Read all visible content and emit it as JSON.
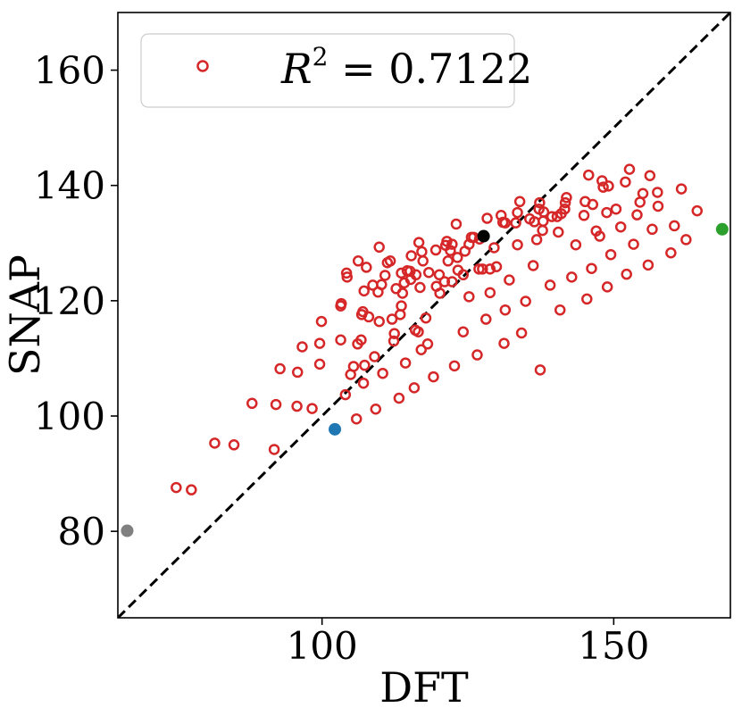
{
  "chart_data": {
    "type": "scatter",
    "title": "",
    "xlabel": "DFT",
    "ylabel": "SNAP",
    "xlim": [
      65,
      170
    ],
    "ylim": [
      65,
      170
    ],
    "xticks": [
      100,
      150
    ],
    "yticks": [
      80,
      100,
      120,
      140,
      160
    ],
    "reference_line": {
      "label": "y = x",
      "style": "dashed",
      "color": "#000000"
    },
    "legend": {
      "position": "top-left",
      "label_prefix": "R",
      "label_power": "2",
      "label_rest": " = 0.7122",
      "r_squared": 0.7122
    },
    "marker_color": "#d62728",
    "series": [
      {
        "name": "R^2 = 0.7122",
        "marker": "open-circle",
        "color": "#d62728",
        "points": [
          [
            75.0,
            87.6
          ],
          [
            77.6,
            87.2
          ],
          [
            81.6,
            95.3
          ],
          [
            84.9,
            95.0
          ],
          [
            88.0,
            102.2
          ],
          [
            91.8,
            94.2
          ],
          [
            92.1,
            102.0
          ],
          [
            92.8,
            108.2
          ],
          [
            95.7,
            101.7
          ],
          [
            95.8,
            107.6
          ],
          [
            96.6,
            112.0
          ],
          [
            98.3,
            101.3
          ],
          [
            99.6,
            109.0
          ],
          [
            99.6,
            112.6
          ],
          [
            99.9,
            116.4
          ],
          [
            103.2,
            113.2
          ],
          [
            103.2,
            119.1
          ],
          [
            103.3,
            119.5
          ],
          [
            104.0,
            103.7
          ],
          [
            104.2,
            124.8
          ],
          [
            104.3,
            124.1
          ],
          [
            104.9,
            107.2
          ],
          [
            105.4,
            108.6
          ],
          [
            105.9,
            99.5
          ],
          [
            106.1,
            112.5
          ],
          [
            106.2,
            126.9
          ],
          [
            106.7,
            113.2
          ],
          [
            106.8,
            117.6
          ],
          [
            107.0,
            118.1
          ],
          [
            107.1,
            105.7
          ],
          [
            107.2,
            121.7
          ],
          [
            107.3,
            108.8
          ],
          [
            107.6,
            125.8
          ],
          [
            108.0,
            117.2
          ],
          [
            108.7,
            122.7
          ],
          [
            109.0,
            110.3
          ],
          [
            109.2,
            101.2
          ],
          [
            109.6,
            121.5
          ],
          [
            109.8,
            116.4
          ],
          [
            109.8,
            129.3
          ],
          [
            110.2,
            122.8
          ],
          [
            110.4,
            107.4
          ],
          [
            110.8,
            124.4
          ],
          [
            111.2,
            126.6
          ],
          [
            111.7,
            126.9
          ],
          [
            112.0,
            116.8
          ],
          [
            112.3,
            113.0
          ],
          [
            112.4,
            114.3
          ],
          [
            112.7,
            122.1
          ],
          [
            113.2,
            103.1
          ],
          [
            113.4,
            117.6
          ],
          [
            113.6,
            119.1
          ],
          [
            113.6,
            124.8
          ],
          [
            113.8,
            121.3
          ],
          [
            114.1,
            123.1
          ],
          [
            114.3,
            109.2
          ],
          [
            114.6,
            125.2
          ],
          [
            115.1,
            125.1
          ],
          [
            115.2,
            123.7
          ],
          [
            115.3,
            127.8
          ],
          [
            115.8,
            104.9
          ],
          [
            116.0,
            114.9
          ],
          [
            116.1,
            124.5
          ],
          [
            116.5,
            114.6
          ],
          [
            116.6,
            130.1
          ],
          [
            116.8,
            122.3
          ],
          [
            117.0,
            111.5
          ],
          [
            117.1,
            128.5
          ],
          [
            117.3,
            126.9
          ],
          [
            117.8,
            117.0
          ],
          [
            118.1,
            112.5
          ],
          [
            118.3,
            124.9
          ],
          [
            119.1,
            106.8
          ],
          [
            119.5,
            128.8
          ],
          [
            119.6,
            122.5
          ],
          [
            120.1,
            124.5
          ],
          [
            120.2,
            121.3
          ],
          [
            121.0,
            123.3
          ],
          [
            121.2,
            129.6
          ],
          [
            121.4,
            130.3
          ],
          [
            121.6,
            126.9
          ],
          [
            122.0,
            128.7
          ],
          [
            122.3,
            129.8
          ],
          [
            122.3,
            123.3
          ],
          [
            122.7,
            108.7
          ],
          [
            123.0,
            133.3
          ],
          [
            123.2,
            127.5
          ],
          [
            123.3,
            125.3
          ],
          [
            124.2,
            114.6
          ],
          [
            124.2,
            124.5
          ],
          [
            124.5,
            128.6
          ],
          [
            125.2,
            120.7
          ],
          [
            125.2,
            129.8
          ],
          [
            125.6,
            131.0
          ],
          [
            126.0,
            131.0
          ],
          [
            126.6,
            110.6
          ],
          [
            126.9,
            125.5
          ],
          [
            127.0,
            130.7
          ],
          [
            127.5,
            125.5
          ],
          [
            128.1,
            116.8
          ],
          [
            128.3,
            134.3
          ],
          [
            128.8,
            125.5
          ],
          [
            128.8,
            121.4
          ],
          [
            129.5,
            129.2
          ],
          [
            129.9,
            125.9
          ],
          [
            130.7,
            134.8
          ],
          [
            131.0,
            133.6
          ],
          [
            131.2,
            112.6
          ],
          [
            131.4,
            118.4
          ],
          [
            131.4,
            133.5
          ],
          [
            132.1,
            123.6
          ],
          [
            133.2,
            133.5
          ],
          [
            133.5,
            129.7
          ],
          [
            133.5,
            135.3
          ],
          [
            133.9,
            137.2
          ],
          [
            134.2,
            114.4
          ],
          [
            134.9,
            119.9
          ],
          [
            135.6,
            134.2
          ],
          [
            136.2,
            126.1
          ],
          [
            136.4,
            133.7
          ],
          [
            136.8,
            130.6
          ],
          [
            137.2,
            135.9
          ],
          [
            137.3,
            137.0
          ],
          [
            137.4,
            108.0
          ],
          [
            137.8,
            132.2
          ],
          [
            137.9,
            133.8
          ],
          [
            138.0,
            135.4
          ],
          [
            139.1,
            122.7
          ],
          [
            139.4,
            134.6
          ],
          [
            140.3,
            134.6
          ],
          [
            140.5,
            131.9
          ],
          [
            140.8,
            118.4
          ],
          [
            141.0,
            135.1
          ],
          [
            141.6,
            135.9
          ],
          [
            141.7,
            137.0
          ],
          [
            141.9,
            137.9
          ],
          [
            142.8,
            124.1
          ],
          [
            143.5,
            129.7
          ],
          [
            144.9,
            134.8
          ],
          [
            145.1,
            137.2
          ],
          [
            145.4,
            120.3
          ],
          [
            145.7,
            141.8
          ],
          [
            146.2,
            125.6
          ],
          [
            146.4,
            136.7
          ],
          [
            147.0,
            132.1
          ],
          [
            147.6,
            131.2
          ],
          [
            148.0,
            140.8
          ],
          [
            148.2,
            139.7
          ],
          [
            148.8,
            135.3
          ],
          [
            148.9,
            122.4
          ],
          [
            149.1,
            139.9
          ],
          [
            149.5,
            128.0
          ],
          [
            150.4,
            135.9
          ],
          [
            151.2,
            132.8
          ],
          [
            152.0,
            140.6
          ],
          [
            152.2,
            124.6
          ],
          [
            152.7,
            142.8
          ],
          [
            153.4,
            129.8
          ],
          [
            154.0,
            134.9
          ],
          [
            154.5,
            137.1
          ],
          [
            155.0,
            138.6
          ],
          [
            155.9,
            126.2
          ],
          [
            156.2,
            141.7
          ],
          [
            156.6,
            132.4
          ],
          [
            157.5,
            138.8
          ],
          [
            157.6,
            136.4
          ],
          [
            159.8,
            128.3
          ],
          [
            160.4,
            133.0
          ],
          [
            161.6,
            139.4
          ],
          [
            162.4,
            130.6
          ],
          [
            164.3,
            135.6
          ]
        ]
      }
    ],
    "highlights": [
      {
        "name": "gray-point",
        "x": 66.6,
        "y": 80.1,
        "color": "#808080"
      },
      {
        "name": "blue-point",
        "x": 102.2,
        "y": 97.7,
        "color": "#1f77b4"
      },
      {
        "name": "black-point",
        "x": 127.7,
        "y": 131.2,
        "color": "#000000"
      },
      {
        "name": "green-point",
        "x": 168.6,
        "y": 132.4,
        "color": "#2ca02c"
      }
    ]
  }
}
